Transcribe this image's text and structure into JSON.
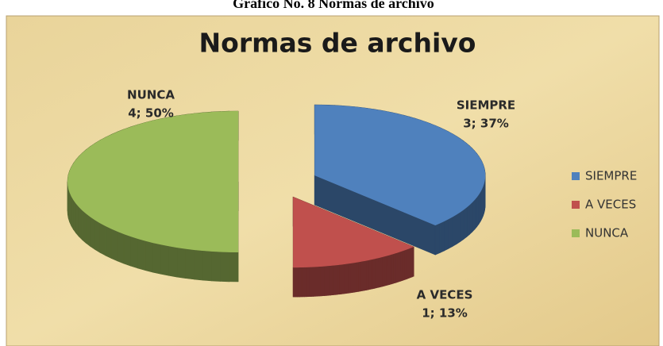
{
  "caption": "Gráfico No. 8 Normas de archivo",
  "chart_data": {
    "type": "pie",
    "title": "Normas de archivo",
    "categories": [
      "SIEMPRE",
      "A VECES",
      "NUNCA"
    ],
    "values": [
      3,
      1,
      4
    ],
    "value_labels": [
      "3; 37%",
      "1; 13%",
      "4; 50%"
    ],
    "colors": [
      "#4f81bd",
      "#c0504d",
      "#9bbb59"
    ],
    "legend": "right"
  }
}
